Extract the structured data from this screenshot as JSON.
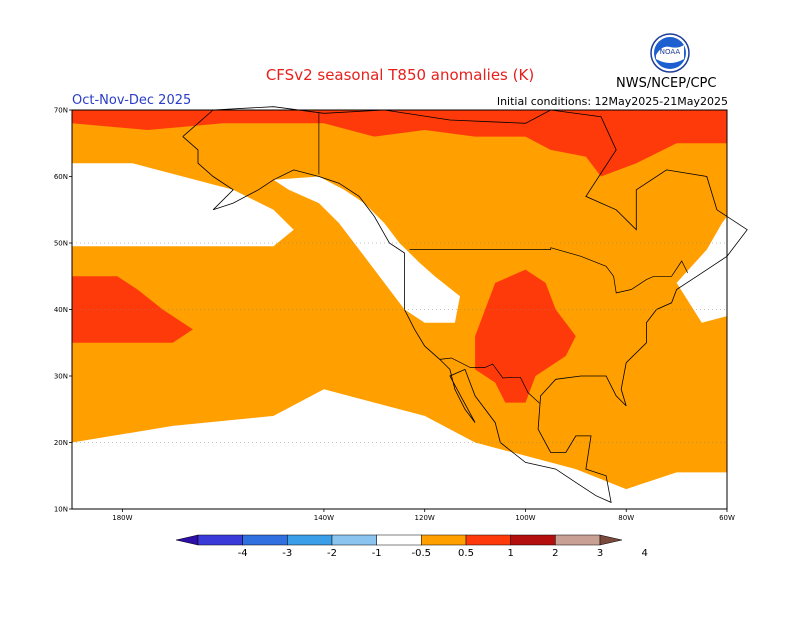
{
  "header": {
    "title": "CFSv2 seasonal T850 anomalies (K)",
    "season": "Oct-Nov-Dec 2025",
    "initial_conditions": "Initial conditions: 12May2025-21May2025",
    "agency": "NWS/NCEP/CPC",
    "logo_text": "NOAA"
  },
  "map": {
    "lon_range": [
      -190,
      -60
    ],
    "lat_range": [
      10,
      70
    ],
    "lat_ticks": [
      {
        "value": 70,
        "label": "70N"
      },
      {
        "value": 60,
        "label": "60N"
      },
      {
        "value": 50,
        "label": "50N"
      },
      {
        "value": 40,
        "label": "40N"
      },
      {
        "value": 30,
        "label": "30N"
      },
      {
        "value": 20,
        "label": "20N"
      },
      {
        "value": 10,
        "label": "10N"
      }
    ],
    "lon_ticks": [
      {
        "value": -180,
        "label": "180W"
      },
      {
        "value": -140,
        "label": "140W"
      },
      {
        "value": -120,
        "label": "120W"
      },
      {
        "value": -100,
        "label": "100W"
      },
      {
        "value": -80,
        "label": "80W"
      },
      {
        "value": -60,
        "label": "60W"
      }
    ],
    "background_class": "0.5 to 1 K",
    "regions": [
      {
        "name": "north-pacific-neutral",
        "class": "neutral",
        "points": [
          [
            -190,
            62
          ],
          [
            -178,
            62
          ],
          [
            -168,
            60
          ],
          [
            -158,
            58
          ],
          [
            -150,
            55
          ],
          [
            -146,
            52
          ],
          [
            -150,
            49.5
          ],
          [
            -170,
            49.5
          ],
          [
            -190,
            49.5
          ]
        ]
      },
      {
        "name": "gulf-alaska-neutral",
        "class": "neutral",
        "points": [
          [
            -150,
            59.5
          ],
          [
            -141,
            60
          ],
          [
            -136,
            58
          ],
          [
            -132,
            56
          ],
          [
            -128,
            53
          ],
          [
            -125,
            50
          ],
          [
            -121,
            47
          ],
          [
            -118,
            45
          ],
          [
            -113,
            42
          ],
          [
            -114,
            38
          ],
          [
            -120,
            38
          ],
          [
            -124,
            40
          ],
          [
            -128,
            44
          ],
          [
            -133,
            49
          ],
          [
            -137,
            53
          ],
          [
            -141,
            56
          ],
          [
            -147,
            58
          ]
        ]
      },
      {
        "name": "south-neutral",
        "class": "neutral",
        "points": [
          [
            -190,
            20
          ],
          [
            -170,
            22.5
          ],
          [
            -150,
            24
          ],
          [
            -140,
            28
          ],
          [
            -130,
            26
          ],
          [
            -120,
            24
          ],
          [
            -110,
            20
          ],
          [
            -100,
            18
          ],
          [
            -90,
            16
          ],
          [
            -80,
            13
          ],
          [
            -70,
            15.5
          ],
          [
            -60,
            15.5
          ],
          [
            -60,
            10
          ],
          [
            -190,
            10
          ]
        ]
      },
      {
        "name": "atlantic-canada-neutral",
        "class": "neutral",
        "points": [
          [
            -70,
            44
          ],
          [
            -64,
            49
          ],
          [
            -61,
            53
          ],
          [
            -60,
            54
          ],
          [
            -60,
            39
          ],
          [
            -65,
            38
          ]
        ]
      },
      {
        "name": "arctic-1to2",
        "class": "1-2 K",
        "points": [
          [
            -190,
            70
          ],
          [
            -60,
            70
          ],
          [
            -60,
            65
          ],
          [
            -70,
            65
          ],
          [
            -78,
            62
          ],
          [
            -85,
            60
          ],
          [
            -88,
            63
          ],
          [
            -95,
            64
          ],
          [
            -100,
            66
          ],
          [
            -110,
            66
          ],
          [
            -120,
            67
          ],
          [
            -130,
            66
          ],
          [
            -140,
            68
          ],
          [
            -160,
            68
          ],
          [
            -175,
            67
          ],
          [
            -190,
            68
          ]
        ]
      },
      {
        "name": "pacific-1to2",
        "class": "1-2 K",
        "points": [
          [
            -190,
            45
          ],
          [
            -181,
            45
          ],
          [
            -177,
            43
          ],
          [
            -172,
            40
          ],
          [
            -166,
            37
          ],
          [
            -170,
            35
          ],
          [
            -180,
            35
          ],
          [
            -190,
            35
          ]
        ]
      },
      {
        "name": "central-us-1to2",
        "class": "1-2 K",
        "points": [
          [
            -106,
            44
          ],
          [
            -100,
            46
          ],
          [
            -96,
            44
          ],
          [
            -94,
            40
          ],
          [
            -90,
            36
          ],
          [
            -92,
            33
          ],
          [
            -98,
            30
          ],
          [
            -100,
            26
          ],
          [
            -104,
            26
          ],
          [
            -106,
            29
          ],
          [
            -110,
            31
          ],
          [
            -110,
            36
          ]
        ]
      }
    ],
    "color_classes": {
      "neutral": "#ffffff",
      "0.5 to 1 K": "#ff9f00",
      "1-2 K": "#ff3a0a"
    }
  },
  "colorbar": {
    "bins": [
      {
        "color": "#2e10a8"
      },
      {
        "color": "#3a3ad8"
      },
      {
        "color": "#2f6fe0"
      },
      {
        "color": "#3a9ee8"
      },
      {
        "color": "#8cc4f0"
      },
      {
        "color": "#ffffff"
      },
      {
        "color": "#ff9f00"
      },
      {
        "color": "#ff3a0a"
      },
      {
        "color": "#b30f0f"
      },
      {
        "color": "#c8a094"
      },
      {
        "color": "#7a4a3c"
      }
    ],
    "labels": [
      "-4",
      "-3",
      "-2",
      "-1",
      "-0.5",
      "0.5",
      "1",
      "2",
      "3",
      "4"
    ]
  }
}
